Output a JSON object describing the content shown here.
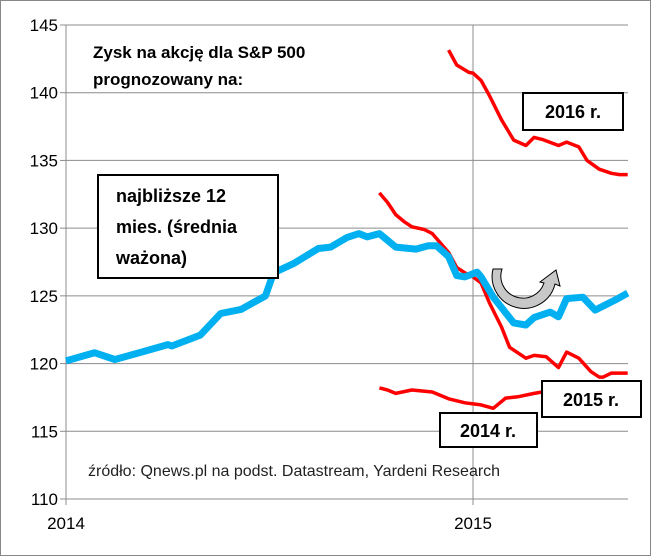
{
  "chart_data": {
    "type": "line",
    "title": "Zysk na akcję dla S&P 500",
    "title_line2": "prognozowany na:",
    "xlabel": "",
    "ylabel": "",
    "xlim": [
      2014,
      2015.38
    ],
    "ylim": [
      110,
      145
    ],
    "yticks": [
      110,
      115,
      120,
      125,
      130,
      135,
      140,
      145
    ],
    "xticks": [
      {
        "value": 2014,
        "label": "2014"
      },
      {
        "value": 2015,
        "label": "2015"
      }
    ],
    "grid": true,
    "source": "źródło: Qnews.pl na podst. Datastream, Yardeni Research",
    "series": [
      {
        "name": "najbliższe 12 mies. (średnia ważona)",
        "label_lines": [
          "najbliższe 12",
          "mies. (średnia",
          "ważona)"
        ],
        "color": "#00b0f0",
        "x": [
          2014.0,
          2014.07,
          2014.12,
          2014.18,
          2014.25,
          2014.26,
          2014.33,
          2014.38,
          2014.43,
          2014.49,
          2014.51,
          2014.56,
          2014.62,
          2014.65,
          2014.69,
          2014.72,
          2014.74,
          2014.77,
          2014.81,
          2014.86,
          2014.89,
          2014.91,
          2014.94,
          2014.96,
          2014.98,
          2015.01,
          2015.02,
          2015.05,
          2015.1,
          2015.13,
          2015.15,
          2015.19,
          2015.21,
          2015.23,
          2015.27,
          2015.3,
          2015.35,
          2015.38
        ],
        "y": [
          120.2,
          120.8,
          120.3,
          120.8,
          121.4,
          121.3,
          122.1,
          123.7,
          124.0,
          125.0,
          126.7,
          127.4,
          128.5,
          128.6,
          129.3,
          129.6,
          129.35,
          129.6,
          128.6,
          128.45,
          128.7,
          128.7,
          127.9,
          126.5,
          126.4,
          126.75,
          126.4,
          124.9,
          123.0,
          122.85,
          123.4,
          123.8,
          123.45,
          124.8,
          124.9,
          123.95,
          124.7,
          125.2
        ]
      },
      {
        "name": "2015 r.",
        "color": "#ff0000",
        "x": [
          2014.77,
          2014.79,
          2014.81,
          2014.83,
          2014.85,
          2014.88,
          2014.9,
          2014.92,
          2014.94,
          2014.96,
          2014.98,
          2015.0,
          2015.02,
          2015.04,
          2015.07,
          2015.09,
          2015.13,
          2015.15,
          2015.18,
          2015.21,
          2015.23,
          2015.26,
          2015.29,
          2015.31,
          2015.32,
          2015.34,
          2015.38
        ],
        "y": [
          132.6,
          131.9,
          131.0,
          130.5,
          130.1,
          129.9,
          129.6,
          128.9,
          128.2,
          127.1,
          126.7,
          126.4,
          125.95,
          124.5,
          122.7,
          121.2,
          120.4,
          120.6,
          120.5,
          119.7,
          120.85,
          120.4,
          119.4,
          119.0,
          119.0,
          119.3,
          119.3
        ]
      },
      {
        "name": "2016 r.",
        "color": "#ff0000",
        "x": [
          2014.94,
          2014.96,
          2014.99,
          2015.0,
          2015.02,
          2015.04,
          2015.07,
          2015.1,
          2015.13,
          2015.15,
          2015.17,
          2015.21,
          2015.23,
          2015.26,
          2015.28,
          2015.31,
          2015.34,
          2015.36,
          2015.38
        ],
        "y": [
          143.15,
          142.05,
          141.5,
          141.45,
          140.9,
          139.8,
          138.0,
          136.5,
          136.1,
          136.7,
          136.55,
          136.1,
          136.35,
          136.0,
          135.0,
          134.35,
          134.05,
          133.95,
          133.95
        ]
      },
      {
        "name": "2014 r.",
        "color": "#ff0000",
        "x": [
          2014.77,
          2014.79,
          2014.81,
          2014.85,
          2014.9,
          2014.94,
          2014.98,
          2015.02,
          2015.05,
          2015.08,
          2015.11,
          2015.15,
          2015.17
        ],
        "y": [
          118.2,
          118.05,
          117.8,
          118.05,
          117.9,
          117.4,
          117.1,
          116.95,
          116.7,
          117.45,
          117.55,
          117.8,
          117.9
        ]
      }
    ]
  }
}
